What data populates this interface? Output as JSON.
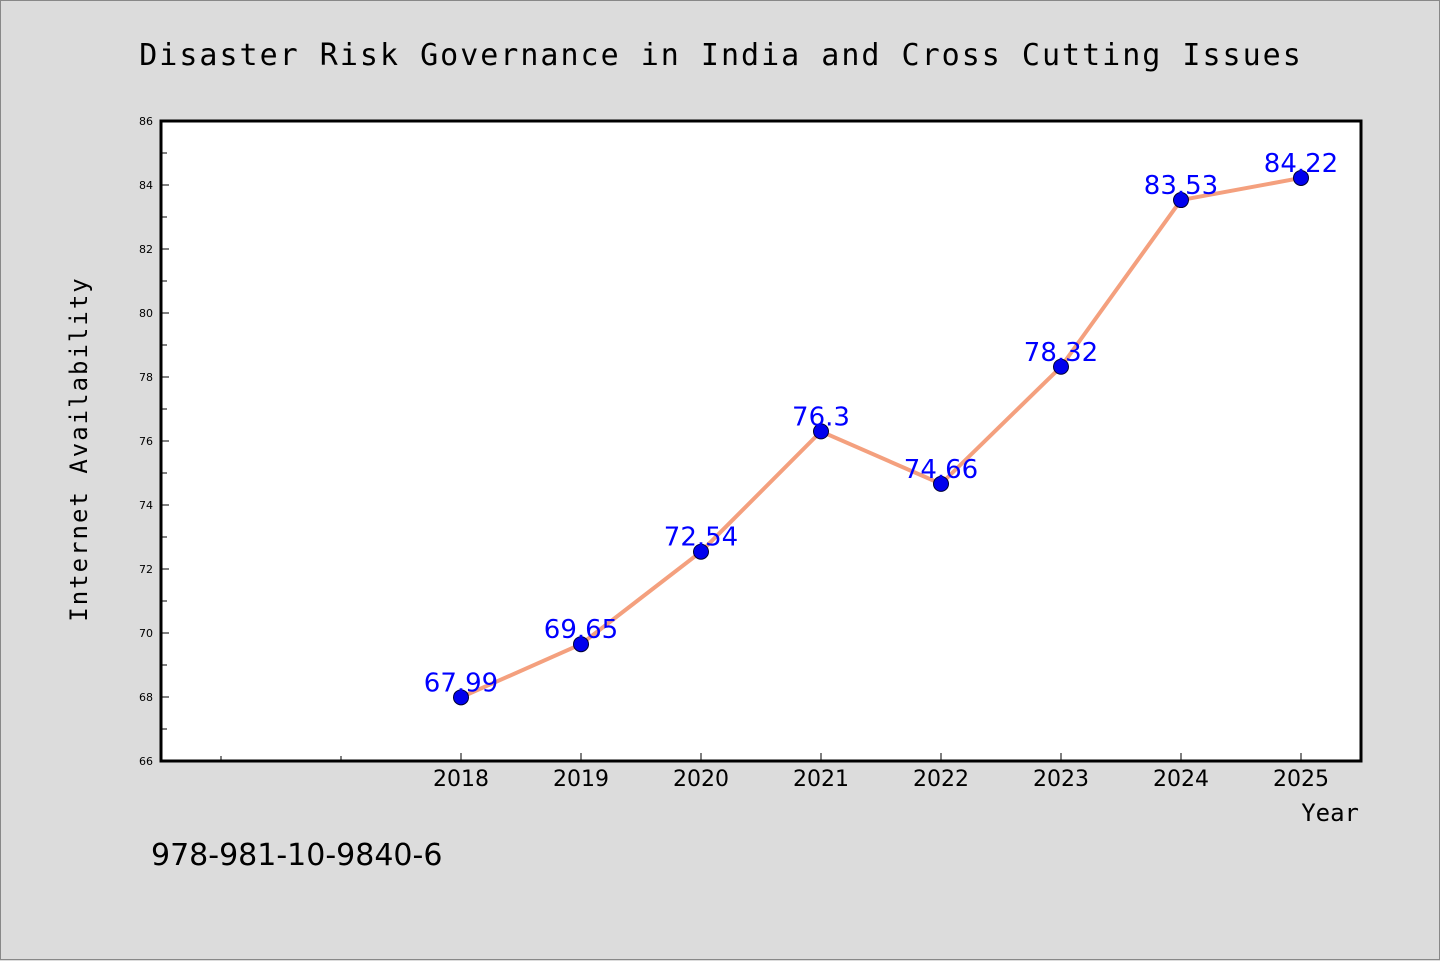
{
  "chart_data": {
    "type": "line",
    "title": "Disaster Risk Governance in India and Cross Cutting Issues",
    "xlabel": "Year",
    "ylabel": "Internet Availability",
    "categories": [
      "2018",
      "2019",
      "2020",
      "2021",
      "2022",
      "2023",
      "2024",
      "2025"
    ],
    "values": [
      67.99,
      69.65,
      72.54,
      76.3,
      74.66,
      78.32,
      83.53,
      84.22
    ],
    "data_labels": [
      "67.99",
      "69.65",
      "72.54",
      "76.3",
      "74.66",
      "78.32",
      "83.53",
      "84.22"
    ],
    "ylim": [
      66,
      86
    ],
    "yticks": [
      "66",
      "68",
      "70",
      "72",
      "74",
      "76",
      "78",
      "80",
      "82",
      "84",
      "86"
    ],
    "grid": false,
    "legend": "none",
    "colors": {
      "line": "#f4a07e",
      "marker": "#0000ee",
      "label": "#0000ff",
      "background": "#dcdcdc",
      "plot": "#ffffff"
    }
  },
  "footer": {
    "isbn": "978-981-10-9840-6"
  }
}
